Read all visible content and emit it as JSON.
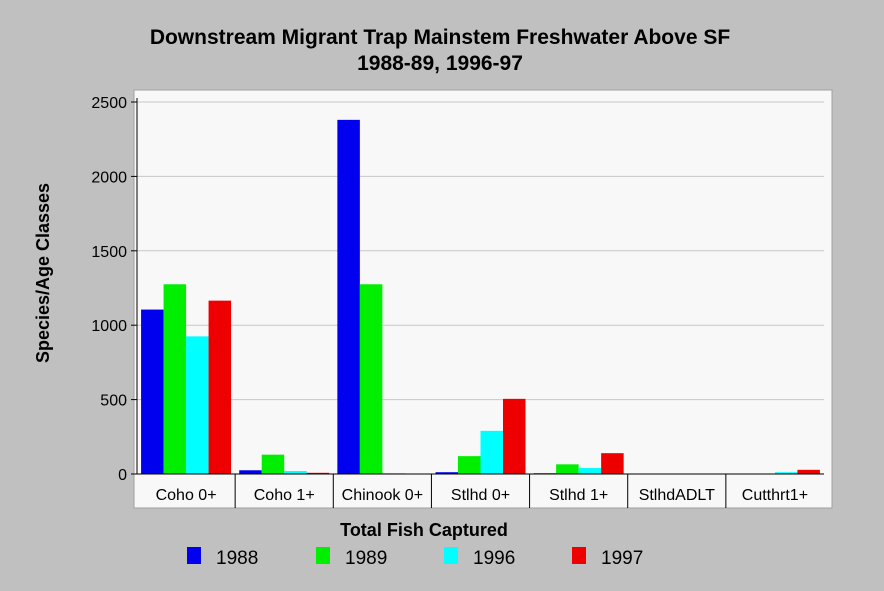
{
  "chart_data": {
    "type": "bar",
    "title": "Downstream Migrant Trap Mainstem Freshwater Above SF",
    "subtitle": "1988-89, 1996-97",
    "xlabel": "Total Fish Captured",
    "ylabel": "Species/Age Classes",
    "ylim": [
      0,
      2500
    ],
    "yticks": [
      0,
      500,
      1000,
      1500,
      2000,
      2500
    ],
    "grid": true,
    "legend_position": "bottom",
    "categories": [
      "Coho 0+",
      "Coho 1+",
      "Chinook 0+",
      "Stlhd 0+",
      "Stlhd 1+",
      "StlhdADLT",
      "Cutthrt1+"
    ],
    "series": [
      {
        "name": "1988",
        "color": "#0000ee",
        "values": [
          1105,
          25,
          2380,
          12,
          5,
          0,
          0
        ]
      },
      {
        "name": "1989",
        "color": "#00ee00",
        "values": [
          1275,
          130,
          1275,
          120,
          65,
          0,
          0
        ]
      },
      {
        "name": "1996",
        "color": "#00ffff",
        "values": [
          925,
          20,
          5,
          290,
          40,
          0,
          12
        ]
      },
      {
        "name": "1997",
        "color": "#ee0000",
        "values": [
          1165,
          8,
          0,
          505,
          140,
          0,
          28
        ]
      }
    ]
  }
}
